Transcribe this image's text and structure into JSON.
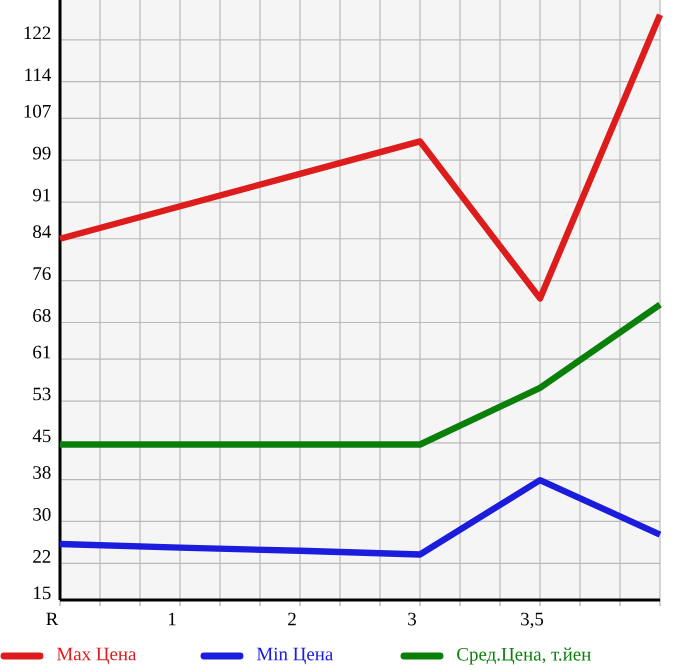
{
  "chart_data": {
    "type": "line",
    "categories": [
      "R",
      "1",
      "2",
      "3",
      "3,5",
      null
    ],
    "series": [
      {
        "name": "Max Цена",
        "color": "#dd1c1c",
        "values": [
          84.0,
          90.2,
          96.4,
          102.6,
          72.6,
          126.8
        ]
      },
      {
        "name": "Min Цена",
        "color": "#1c1cdd",
        "values": [
          25.7,
          25.0,
          24.4,
          23.7,
          37.9,
          27.5
        ]
      },
      {
        "name": "Сред.Цена, т.йен",
        "color": "#0a800a",
        "values": [
          44.7,
          44.7,
          44.7,
          44.7,
          55.5,
          71.4
        ]
      }
    ],
    "ylim": [
      15,
      129.6
    ],
    "yticks": [
      15,
      22,
      30,
      38,
      45,
      53,
      61,
      68,
      76,
      84,
      91,
      99,
      107,
      114,
      122
    ],
    "grid": true,
    "legend": "bottom",
    "marker": "none",
    "line_style": "solid"
  }
}
